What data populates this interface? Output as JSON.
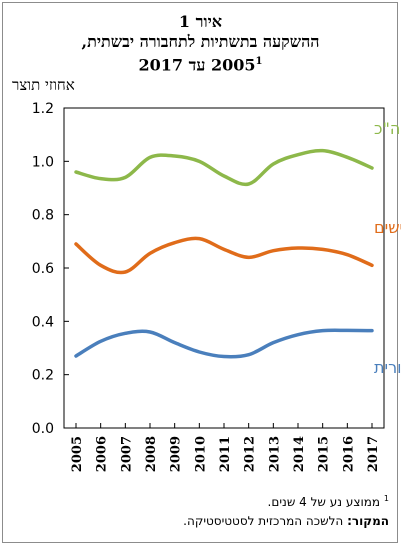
{
  "header": {
    "title_line1": "איור 1",
    "title_line2": "ההשקעה בתשתיות לתחבורה יבשתית,",
    "title_line3": "2005 עד 2017",
    "title_footnote_mark": "1"
  },
  "footer": {
    "footnote_mark": "1",
    "footnote_text": "ממוצע נע של 4 שנים.",
    "source_label": "המקור:",
    "source_text": "הלשכה המרכזית לסטטיסטיקה."
  },
  "chart_data": {
    "type": "line",
    "ylabel": "אחוזי תוצר",
    "ylim": [
      0,
      1.2
    ],
    "yticks": [
      "0.0",
      "0.2",
      "0.4",
      "0.6",
      "0.8",
      "1.0",
      "1.2"
    ],
    "x": [
      "2005",
      "2006",
      "2007",
      "2008",
      "2009",
      "2010",
      "2011",
      "2012",
      "2013",
      "2014",
      "2015",
      "2016",
      "2017"
    ],
    "grid": false,
    "series": [
      {
        "name": "סה\"כ",
        "color": "#8db84a",
        "values": [
          0.96,
          0.935,
          0.94,
          1.015,
          1.02,
          1.0,
          0.945,
          0.915,
          0.99,
          1.025,
          1.04,
          1.015,
          0.975
        ]
      },
      {
        "name": "כבישים",
        "color": "#e06c1a",
        "values": [
          0.69,
          0.61,
          0.585,
          0.655,
          0.695,
          0.71,
          0.67,
          0.64,
          0.665,
          0.675,
          0.67,
          0.65,
          0.61
        ]
      },
      {
        "name": "תחבורה ציבורית",
        "color": "#4a7fbc",
        "values": [
          0.27,
          0.325,
          0.355,
          0.36,
          0.32,
          0.285,
          0.268,
          0.275,
          0.32,
          0.35,
          0.365,
          0.366,
          0.365
        ]
      }
    ]
  }
}
